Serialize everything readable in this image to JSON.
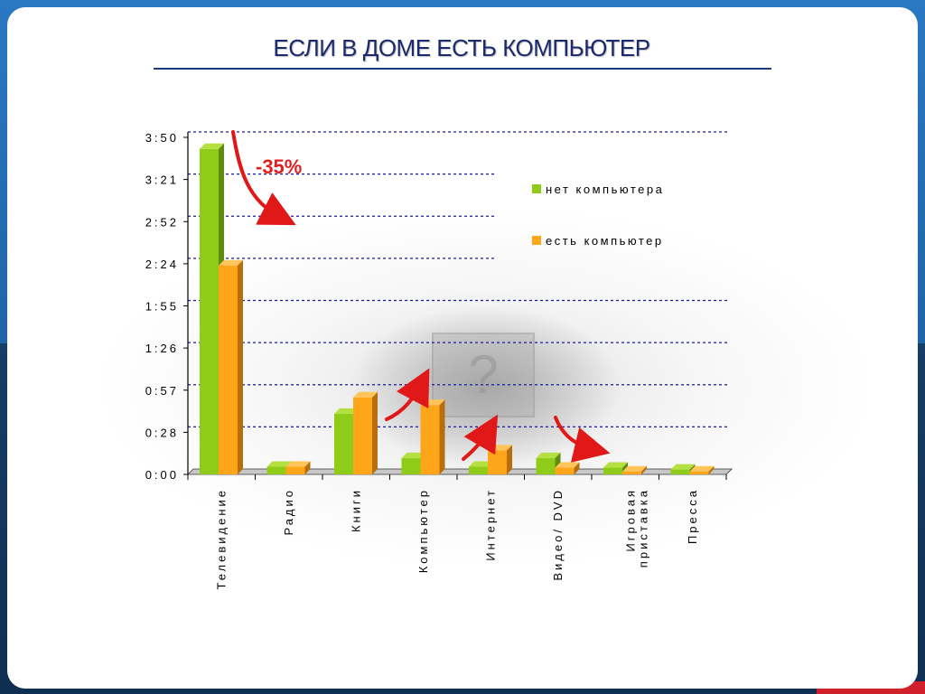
{
  "slide": {
    "title": "ЕСЛИ В ДОМЕ ЕСТЬ КОМПЬЮТЕР"
  },
  "colors": {
    "series_green": "#8fcc1a",
    "series_orange": "#ffa51a",
    "grid": "#1a1aa0",
    "arrow": "#e01818"
  },
  "chart_data": {
    "type": "bar",
    "title": "",
    "xlabel": "",
    "ylabel": "",
    "ylim": [
      0,
      3.5
    ],
    "y_tick_labels": [
      "0:00",
      "0:28",
      "0:57",
      "1:26",
      "1:55",
      "2:24",
      "2:52",
      "3:21",
      "3:50"
    ],
    "categories": [
      "Телевидение",
      "Радио",
      "Книги",
      "Компьютер",
      "Интернет",
      "Видео/ DVD",
      "Игровая\nприставка",
      "Пресса"
    ],
    "series": [
      {
        "name": "нет компьютера",
        "values": [
          3.38,
          0.08,
          0.63,
          0.17,
          0.08,
          0.17,
          0.07,
          0.05
        ]
      },
      {
        "name": "есть компьютер",
        "values": [
          2.17,
          0.08,
          0.8,
          0.72,
          0.25,
          0.07,
          0.03,
          0.03
        ]
      }
    ],
    "legend_position": "top-right",
    "grid": true,
    "annotations": [
      {
        "text": "-35%"
      }
    ]
  }
}
